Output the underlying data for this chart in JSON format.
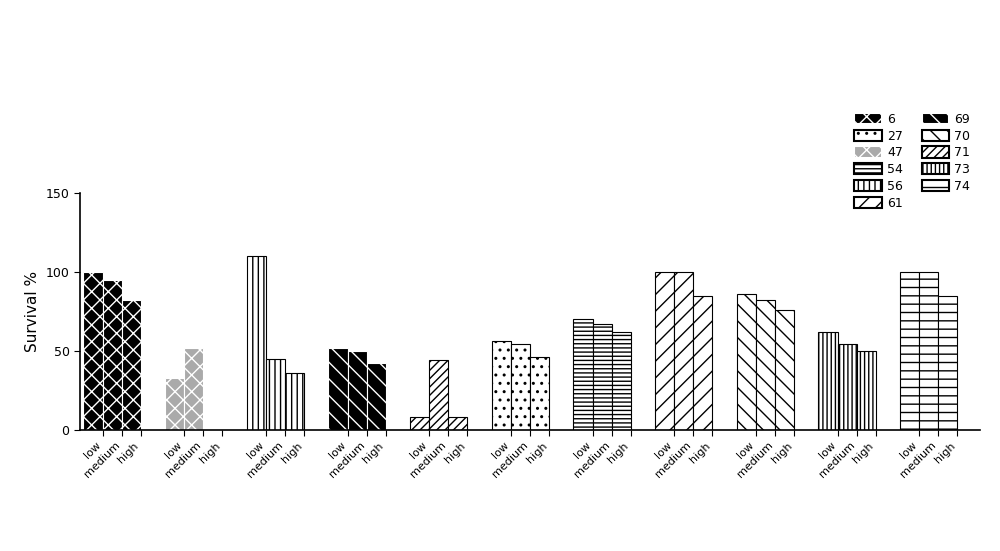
{
  "title": "",
  "ylabel": "Survival %",
  "ylim": [
    0,
    150
  ],
  "yticks": [
    0,
    50,
    100,
    150
  ],
  "groups": [
    {
      "label": "6",
      "values": [
        100,
        95,
        82
      ]
    },
    {
      "label": "47",
      "values": [
        33,
        52,
        0
      ]
    },
    {
      "label": "56",
      "values": [
        110,
        45,
        36
      ]
    },
    {
      "label": "69",
      "values": [
        52,
        50,
        42
      ]
    },
    {
      "label": "71",
      "values": [
        8,
        44,
        8
      ]
    },
    {
      "label": "27",
      "values": [
        56,
        54,
        46
      ]
    },
    {
      "label": "54",
      "values": [
        70,
        67,
        62
      ]
    },
    {
      "label": "61",
      "values": [
        100,
        100,
        85
      ]
    },
    {
      "label": "70",
      "values": [
        86,
        82,
        76
      ]
    },
    {
      "label": "73",
      "values": [
        62,
        54,
        50
      ]
    },
    {
      "label": "74",
      "values": [
        100,
        100,
        85
      ]
    }
  ],
  "legend_labels": [
    "6",
    "47",
    "56",
    "69",
    "71",
    "27",
    "54",
    "61",
    "70",
    "73",
    "74"
  ],
  "hatch_patterns": [
    "xx",
    "xx",
    "|||",
    "\\\\",
    "//",
    "..",
    "---",
    "//",
    "\\",
    "|||",
    "--"
  ],
  "bar_facecolors": [
    "black",
    "gray",
    "white",
    "black",
    "white",
    "white",
    "white",
    "white",
    "white",
    "white",
    "white"
  ],
  "legend_ncol": 2
}
